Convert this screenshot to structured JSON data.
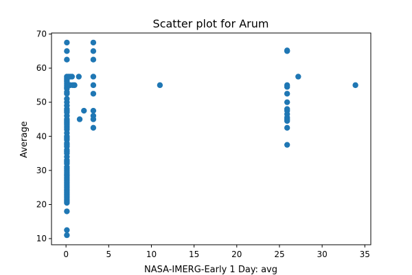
{
  "chart_data": {
    "type": "scatter",
    "title": "Scatter plot for Arum",
    "xlabel": "NASA-IMERG-Early 1 Day: avg",
    "ylabel": "Average",
    "xlim": [
      -1.7,
      35.7
    ],
    "ylim": [
      8.2,
      70.3
    ],
    "xticks": [
      0,
      5,
      10,
      15,
      20,
      25,
      30,
      35
    ],
    "yticks": [
      10,
      20,
      30,
      40,
      50,
      60,
      70
    ],
    "grid": false,
    "legend": "none",
    "marker_color": "#1f77b4",
    "series": [
      {
        "x": [
          0.1,
          0.1,
          0.1,
          0.1,
          0.1,
          0.1,
          0.1,
          0.1,
          0.1,
          0.1,
          0.1,
          0.1,
          0.1,
          0.1,
          0.1,
          0.1,
          0.1,
          0.1,
          0.1,
          0.1,
          0.1,
          0.1,
          0.1,
          0.1,
          0.1,
          0.1,
          0.1,
          0.1,
          0.1,
          0.1,
          0.1,
          0.1,
          0.1,
          0.1,
          0.1,
          0.1,
          0.1,
          0.1,
          0.1,
          0.1,
          0.1,
          0.1,
          0.1,
          0.1,
          0.1,
          0.1,
          0.1,
          0.1,
          0.1,
          0.1,
          0.1,
          0.1,
          0.1,
          0.1,
          0.1,
          0.1,
          0.1,
          0.1,
          0.1,
          0.1,
          0.1,
          0.1,
          0.1,
          0.1,
          0.1,
          0.1,
          0.3,
          0.3,
          0.5,
          0.5,
          0.7,
          0.8,
          1.0,
          1.5,
          1.6,
          2.1,
          3.2,
          3.2,
          3.2,
          3.2,
          3.2,
          3.2,
          3.2,
          3.2,
          3.2,
          3.2,
          11.0,
          25.9,
          25.9,
          25.9,
          25.9,
          25.9,
          25.9,
          25.9,
          25.9,
          25.9,
          25.9,
          25.9,
          25.9,
          25.9,
          25.9,
          27.2,
          33.9
        ],
        "y": [
          67.5,
          65.0,
          62.5,
          57.5,
          57.0,
          56.5,
          55.0,
          54.5,
          53.0,
          52.5,
          50.0,
          48.0,
          47.5,
          47.0,
          46.0,
          45.0,
          44.5,
          44.0,
          43.0,
          42.5,
          42.0,
          41.0,
          40.0,
          39.5,
          39.0,
          38.0,
          37.5,
          37.0,
          36.0,
          35.5,
          35.0,
          34.0,
          33.0,
          32.5,
          32.0,
          31.0,
          30.5,
          30.0,
          29.5,
          29.0,
          28.5,
          28.0,
          27.5,
          27.0,
          26.5,
          26.0,
          25.5,
          25.0,
          24.5,
          24.0,
          23.5,
          23.0,
          22.5,
          22.0,
          21.5,
          21.0,
          20.5,
          18.0,
          12.5,
          11.0,
          56.0,
          55.5,
          54.0,
          51.0,
          49.0,
          43.5,
          57.5,
          55.0,
          57.5,
          55.0,
          57.5,
          55.0,
          55.0,
          57.5,
          45.0,
          47.5,
          67.5,
          65.0,
          62.5,
          57.5,
          55.0,
          52.5,
          47.5,
          46.0,
          45.0,
          42.5,
          55.0,
          65.0,
          55.0,
          54.5,
          52.5,
          50.0,
          48.0,
          47.5,
          46.5,
          45.5,
          45.0,
          44.5,
          42.5,
          37.5,
          65.2,
          57.5,
          55.0
        ]
      }
    ]
  }
}
